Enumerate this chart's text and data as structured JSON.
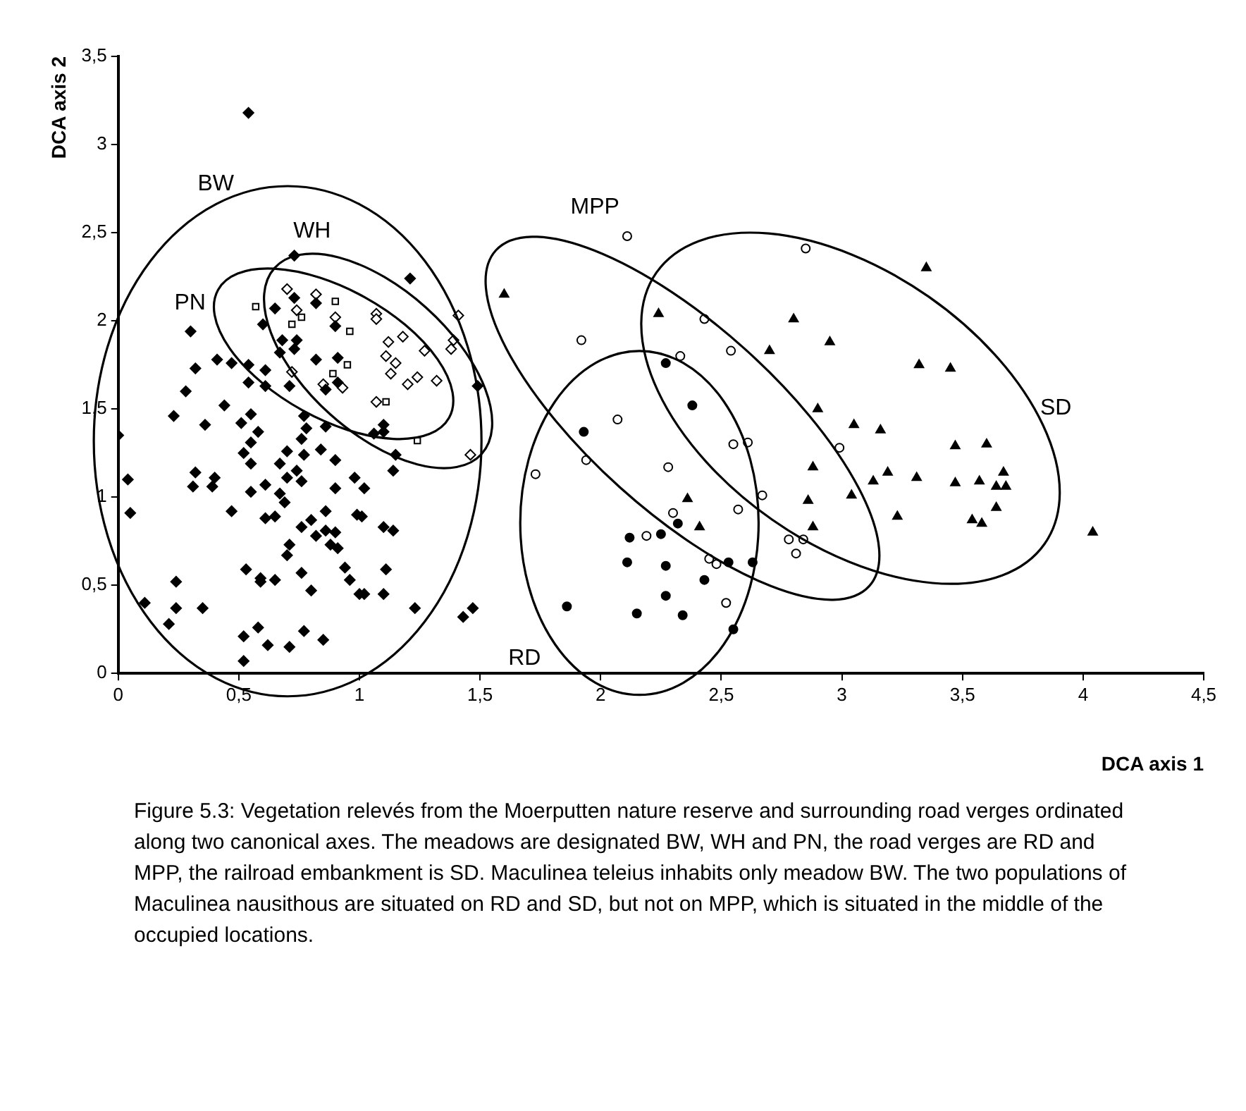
{
  "chart_data": {
    "type": "scatter",
    "xlabel": "DCA axis 1",
    "ylabel": "DCA axis 2",
    "xlim": [
      0,
      4.5
    ],
    "ylim": [
      0,
      3.5
    ],
    "xticks": [
      0,
      {
        "value": 0.5,
        "label": "0,5"
      },
      1,
      {
        "value": 1.5,
        "label": "1,5"
      },
      2,
      {
        "value": 2.5,
        "label": "2,5"
      },
      3,
      {
        "value": 3.5,
        "label": "3,5"
      },
      4,
      {
        "value": 4.5,
        "label": "4,5"
      }
    ],
    "yticks": [
      0,
      {
        "value": 0.5,
        "label": "0,5"
      },
      1,
      {
        "value": 1.5,
        "label": "1,5"
      },
      2,
      {
        "value": 2.5,
        "label": "2,5"
      },
      3,
      {
        "value": 3.5,
        "label": "3,5"
      }
    ],
    "grid": false,
    "legend": false,
    "series": [
      {
        "color": "#000000",
        "marker": "diamond",
        "x": [
          0.54,
          1.21,
          0.3,
          0.65,
          0.73,
          0.82,
          0.6,
          0.9,
          0.32,
          0.41,
          0.47,
          0.54,
          0.61,
          0.68,
          0.74,
          0.67,
          0.73,
          0.82,
          0.91,
          0.28,
          0.54,
          0.61,
          0.71,
          0.91,
          0.86,
          1.49,
          0.73,
          0.44,
          0.23,
          0.36,
          0.51,
          0.55,
          0.58,
          0.55,
          0.52,
          0.55,
          0.77,
          0.78,
          0.76,
          0.84,
          0.77,
          0.86,
          0.7,
          0.67,
          0.9,
          0.74,
          0.7,
          0.76,
          0.61,
          0.67,
          0.55,
          0.69,
          0.9,
          0.98,
          1.02,
          1.1,
          1.1,
          1.06,
          1.15,
          1.14,
          0.04,
          0.05,
          0.32,
          0.31,
          0.39,
          0.4,
          0.47,
          0.61,
          0.65,
          0.86,
          0.99,
          1.01,
          0.76,
          0.8,
          0.82,
          0.86,
          0.9,
          0.88,
          0.91,
          0.71,
          0.7,
          1.1,
          1.14,
          0.53,
          0.59,
          0.59,
          0.65,
          0.76,
          0.8,
          0.94,
          0.96,
          1.11,
          1.0,
          1.02,
          1.1,
          1.23,
          0.24,
          0.24,
          0.11,
          0.35,
          0.21,
          0.52,
          0.58,
          0.62,
          0.71,
          0.77,
          0.85,
          0.52,
          1.43,
          1.47,
          0.0
        ],
        "values": [
          3.18,
          2.24,
          1.94,
          2.07,
          2.13,
          2.1,
          1.98,
          1.97,
          1.73,
          1.78,
          1.76,
          1.75,
          1.72,
          1.89,
          1.89,
          1.82,
          1.84,
          1.78,
          1.79,
          1.6,
          1.65,
          1.63,
          1.63,
          1.65,
          1.61,
          1.63,
          2.37,
          1.52,
          1.46,
          1.41,
          1.42,
          1.47,
          1.37,
          1.31,
          1.25,
          1.19,
          1.46,
          1.39,
          1.33,
          1.27,
          1.24,
          1.4,
          1.26,
          1.19,
          1.21,
          1.15,
          1.11,
          1.09,
          1.07,
          1.02,
          1.03,
          0.97,
          1.05,
          1.11,
          1.05,
          1.37,
          1.41,
          1.36,
          1.24,
          1.15,
          1.1,
          0.91,
          1.14,
          1.06,
          1.06,
          1.11,
          0.92,
          0.88,
          0.89,
          0.92,
          0.9,
          0.89,
          0.83,
          0.87,
          0.78,
          0.81,
          0.8,
          0.73,
          0.71,
          0.73,
          0.67,
          0.83,
          0.81,
          0.59,
          0.54,
          0.52,
          0.53,
          0.57,
          0.47,
          0.6,
          0.53,
          0.59,
          0.45,
          0.45,
          0.45,
          0.37,
          0.52,
          0.37,
          0.4,
          0.37,
          0.28,
          0.21,
          0.26,
          0.16,
          0.15,
          0.24,
          0.19,
          0.07,
          0.32,
          0.37,
          1.35
        ]
      },
      {
        "color": "#000000",
        "marker": "diamond",
        "x": [
          0.7,
          0.82,
          0.9,
          1.07,
          1.07,
          1.12,
          1.18,
          1.27,
          1.39,
          1.38,
          1.11,
          1.15,
          1.13,
          1.2,
          1.24,
          1.32,
          1.41,
          0.85,
          0.93,
          0.74,
          0.72,
          1.07,
          1.46
        ],
        "values": [
          2.18,
          2.15,
          2.02,
          2.04,
          2.01,
          1.88,
          1.91,
          1.83,
          1.89,
          1.84,
          1.8,
          1.76,
          1.7,
          1.64,
          1.68,
          1.66,
          2.03,
          1.64,
          1.62,
          2.06,
          1.71,
          1.54,
          1.24
        ]
      },
      {
        "color": "#000000",
        "marker": "square",
        "x": [
          0.57,
          0.9,
          0.76,
          0.72,
          0.96,
          0.95,
          0.89,
          1.11,
          1.24
        ],
        "values": [
          2.08,
          2.11,
          2.02,
          1.98,
          1.94,
          1.75,
          1.7,
          1.54,
          1.32
        ]
      },
      {
        "color": "#000000",
        "marker": "circle",
        "x": [
          2.11,
          1.92,
          2.43,
          2.54,
          2.33,
          2.85,
          2.07,
          1.94,
          1.73,
          2.28,
          2.55,
          2.61,
          2.67,
          2.57,
          2.3,
          2.19,
          2.45,
          2.48,
          2.52,
          2.78,
          2.84,
          2.81,
          2.99
        ],
        "values": [
          2.48,
          1.89,
          2.01,
          1.83,
          1.8,
          2.41,
          1.44,
          1.21,
          1.13,
          1.17,
          1.3,
          1.31,
          1.01,
          0.93,
          0.91,
          0.78,
          0.65,
          0.62,
          0.4,
          0.76,
          0.76,
          0.68,
          1.28
        ]
      },
      {
        "color": "#000000",
        "marker": "circle",
        "x": [
          2.38,
          1.93,
          2.32,
          2.25,
          2.12,
          2.11,
          2.27,
          2.53,
          2.63,
          2.43,
          2.27,
          1.86,
          2.15,
          2.34,
          2.55,
          2.27
        ],
        "values": [
          1.52,
          1.37,
          0.85,
          0.79,
          0.77,
          0.63,
          0.61,
          0.63,
          0.63,
          0.53,
          0.44,
          0.38,
          0.34,
          0.33,
          0.25,
          1.76
        ]
      },
      {
        "color": "#000000",
        "marker": "triangle",
        "x": [
          1.6,
          2.24,
          2.8,
          2.95,
          2.7,
          2.9,
          2.36,
          2.41,
          3.05,
          2.88,
          2.86,
          3.04,
          2.88,
          3.35,
          3.32,
          3.45,
          3.16,
          3.47,
          3.6,
          3.13,
          3.19,
          3.31,
          3.47,
          3.57,
          3.67,
          3.64,
          3.68,
          3.64,
          3.23,
          3.54,
          3.58,
          4.04
        ],
        "values": [
          2.15,
          2.04,
          2.01,
          1.88,
          1.83,
          1.5,
          0.99,
          0.83,
          1.41,
          1.17,
          0.98,
          1.01,
          0.83,
          2.3,
          1.75,
          1.73,
          1.38,
          1.29,
          1.3,
          1.09,
          1.14,
          1.11,
          1.08,
          1.09,
          1.14,
          1.06,
          1.06,
          0.94,
          0.89,
          0.87,
          0.85,
          0.8
        ]
      }
    ],
    "annotations": [
      "BW",
      "WH",
      "PN",
      "MPP",
      "RD",
      "SD",
      "Figure 5.3: Vegetation relevés from the Moerputten nature reserve and surrounding road verges ordinated along two canonical axes. The meadows are designated BW, WH and PN, the road verges are RD and MPP, the railroad embankment is SD. Maculinea teleius inhabits only meadow BW. The two populations of Maculinea nausithous are situated on RD and SD, but not on MPP, which is situated in the middle of the occupied locations."
    ]
  }
}
